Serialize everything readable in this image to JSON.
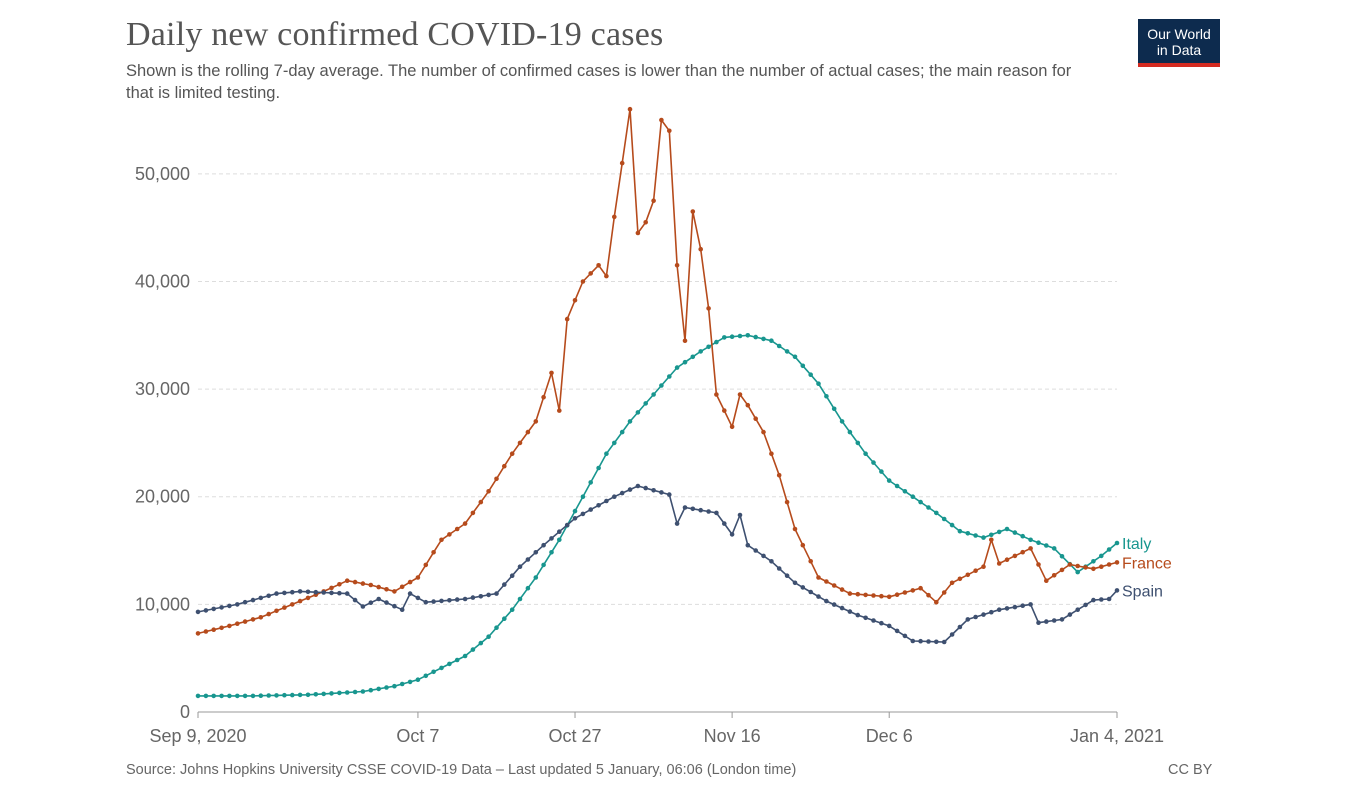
{
  "title": "Daily new confirmed COVID-19 cases",
  "subtitle": "Shown is the rolling 7-day average. The number of confirmed cases is lower than the number of actual cases; the main reason for that is limited testing.",
  "logo": {
    "line1": "Our World",
    "line2": "in Data"
  },
  "source": "Source: Johns Hopkins University CSSE COVID-19 Data – Last updated 5 January, 06:06 (London time)",
  "license": "CC BY",
  "chart_data": {
    "type": "line",
    "x_start": "2020-09-09",
    "x_end": "2021-01-04",
    "xticks": [
      {
        "date": "2020-09-09",
        "label": "Sep 9, 2020"
      },
      {
        "date": "2020-10-07",
        "label": "Oct 7"
      },
      {
        "date": "2020-10-27",
        "label": "Oct 27"
      },
      {
        "date": "2020-11-16",
        "label": "Nov 16"
      },
      {
        "date": "2020-12-06",
        "label": "Dec 6"
      },
      {
        "date": "2021-01-04",
        "label": "Jan 4, 2021"
      }
    ],
    "ylim": [
      0,
      55000
    ],
    "yticks": [
      {
        "value": 0,
        "label": "0"
      },
      {
        "value": 10000,
        "label": "10,000"
      },
      {
        "value": 20000,
        "label": "20,000"
      },
      {
        "value": 30000,
        "label": "30,000"
      },
      {
        "value": 40000,
        "label": "40,000"
      },
      {
        "value": 50000,
        "label": "50,000"
      }
    ],
    "grid": true,
    "series": [
      {
        "name": "Italy",
        "color": "#18968f",
        "points": [
          [
            "2020-09-09",
            1500
          ],
          [
            "2020-09-16",
            1500
          ],
          [
            "2020-09-23",
            1600
          ],
          [
            "2020-09-30",
            1900
          ],
          [
            "2020-10-04",
            2400
          ],
          [
            "2020-10-07",
            3000
          ],
          [
            "2020-10-10",
            4100
          ],
          [
            "2020-10-13",
            5200
          ],
          [
            "2020-10-16",
            7000
          ],
          [
            "2020-10-19",
            9500
          ],
          [
            "2020-10-22",
            12500
          ],
          [
            "2020-10-25",
            16000
          ],
          [
            "2020-10-28",
            20000
          ],
          [
            "2020-10-31",
            24000
          ],
          [
            "2020-11-03",
            27000
          ],
          [
            "2020-11-06",
            29500
          ],
          [
            "2020-11-09",
            32000
          ],
          [
            "2020-11-12",
            33500
          ],
          [
            "2020-11-15",
            34800
          ],
          [
            "2020-11-18",
            35000
          ],
          [
            "2020-11-21",
            34500
          ],
          [
            "2020-11-24",
            33000
          ],
          [
            "2020-11-27",
            30500
          ],
          [
            "2020-11-30",
            27000
          ],
          [
            "2020-12-03",
            24000
          ],
          [
            "2020-12-06",
            21500
          ],
          [
            "2020-12-09",
            20000
          ],
          [
            "2020-12-12",
            18500
          ],
          [
            "2020-12-15",
            16800
          ],
          [
            "2020-12-18",
            16200
          ],
          [
            "2020-12-21",
            17000
          ],
          [
            "2020-12-24",
            16000
          ],
          [
            "2020-12-27",
            15200
          ],
          [
            "2020-12-30",
            13000
          ],
          [
            "2021-01-02",
            14500
          ],
          [
            "2021-01-04",
            15700
          ]
        ]
      },
      {
        "name": "France",
        "color": "#b64b1c",
        "points": [
          [
            "2020-09-09",
            7300
          ],
          [
            "2020-09-13",
            8000
          ],
          [
            "2020-09-17",
            8800
          ],
          [
            "2020-09-21",
            10000
          ],
          [
            "2020-09-25",
            11200
          ],
          [
            "2020-09-28",
            12200
          ],
          [
            "2020-10-01",
            11800
          ],
          [
            "2020-10-04",
            11200
          ],
          [
            "2020-10-07",
            12500
          ],
          [
            "2020-10-10",
            16000
          ],
          [
            "2020-10-13",
            17500
          ],
          [
            "2020-10-16",
            20500
          ],
          [
            "2020-10-19",
            24000
          ],
          [
            "2020-10-22",
            27000
          ],
          [
            "2020-10-24",
            31500
          ],
          [
            "2020-10-25",
            28000
          ],
          [
            "2020-10-26",
            36500
          ],
          [
            "2020-10-28",
            40000
          ],
          [
            "2020-10-30",
            41500
          ],
          [
            "2020-10-31",
            40500
          ],
          [
            "2020-11-01",
            46000
          ],
          [
            "2020-11-02",
            51000
          ],
          [
            "2020-11-03",
            56000
          ],
          [
            "2020-11-04",
            44500
          ],
          [
            "2020-11-05",
            45500
          ],
          [
            "2020-11-06",
            47500
          ],
          [
            "2020-11-07",
            55000
          ],
          [
            "2020-11-08",
            54000
          ],
          [
            "2020-11-09",
            41500
          ],
          [
            "2020-11-10",
            34500
          ],
          [
            "2020-11-11",
            46500
          ],
          [
            "2020-11-12",
            43000
          ],
          [
            "2020-11-13",
            37500
          ],
          [
            "2020-11-14",
            29500
          ],
          [
            "2020-11-16",
            26500
          ],
          [
            "2020-11-17",
            29500
          ],
          [
            "2020-11-18",
            28500
          ],
          [
            "2020-11-20",
            26000
          ],
          [
            "2020-11-22",
            22000
          ],
          [
            "2020-11-24",
            17000
          ],
          [
            "2020-11-27",
            12500
          ],
          [
            "2020-12-01",
            11000
          ],
          [
            "2020-12-06",
            10700
          ],
          [
            "2020-12-10",
            11500
          ],
          [
            "2020-12-12",
            10200
          ],
          [
            "2020-12-14",
            12000
          ],
          [
            "2020-12-18",
            13500
          ],
          [
            "2020-12-19",
            16000
          ],
          [
            "2020-12-20",
            13800
          ],
          [
            "2020-12-24",
            15200
          ],
          [
            "2020-12-26",
            12200
          ],
          [
            "2020-12-29",
            13700
          ],
          [
            "2021-01-01",
            13300
          ],
          [
            "2021-01-04",
            13900
          ]
        ]
      },
      {
        "name": "Spain",
        "color": "#3e5070",
        "points": [
          [
            "2020-09-09",
            9300
          ],
          [
            "2020-09-14",
            10000
          ],
          [
            "2020-09-19",
            11000
          ],
          [
            "2020-09-22",
            11200
          ],
          [
            "2020-09-28",
            11000
          ],
          [
            "2020-09-30",
            9800
          ],
          [
            "2020-10-02",
            10500
          ],
          [
            "2020-10-05",
            9500
          ],
          [
            "2020-10-06",
            11000
          ],
          [
            "2020-10-08",
            10200
          ],
          [
            "2020-10-13",
            10500
          ],
          [
            "2020-10-17",
            11000
          ],
          [
            "2020-10-20",
            13500
          ],
          [
            "2020-10-23",
            15500
          ],
          [
            "2020-10-27",
            18000
          ],
          [
            "2020-11-01",
            20000
          ],
          [
            "2020-11-04",
            21000
          ],
          [
            "2020-11-08",
            20200
          ],
          [
            "2020-11-09",
            17500
          ],
          [
            "2020-11-10",
            19000
          ],
          [
            "2020-11-14",
            18500
          ],
          [
            "2020-11-16",
            16500
          ],
          [
            "2020-11-17",
            18300
          ],
          [
            "2020-11-18",
            15500
          ],
          [
            "2020-11-21",
            14000
          ],
          [
            "2020-11-24",
            12000
          ],
          [
            "2020-11-28",
            10300
          ],
          [
            "2020-12-02",
            9000
          ],
          [
            "2020-12-06",
            8000
          ],
          [
            "2020-12-09",
            6600
          ],
          [
            "2020-12-13",
            6500
          ],
          [
            "2020-12-16",
            8600
          ],
          [
            "2020-12-20",
            9500
          ],
          [
            "2020-12-24",
            10000
          ],
          [
            "2020-12-25",
            8300
          ],
          [
            "2020-12-28",
            8600
          ],
          [
            "2021-01-01",
            10400
          ],
          [
            "2021-01-03",
            10500
          ],
          [
            "2021-01-04",
            11300
          ]
        ]
      }
    ]
  }
}
